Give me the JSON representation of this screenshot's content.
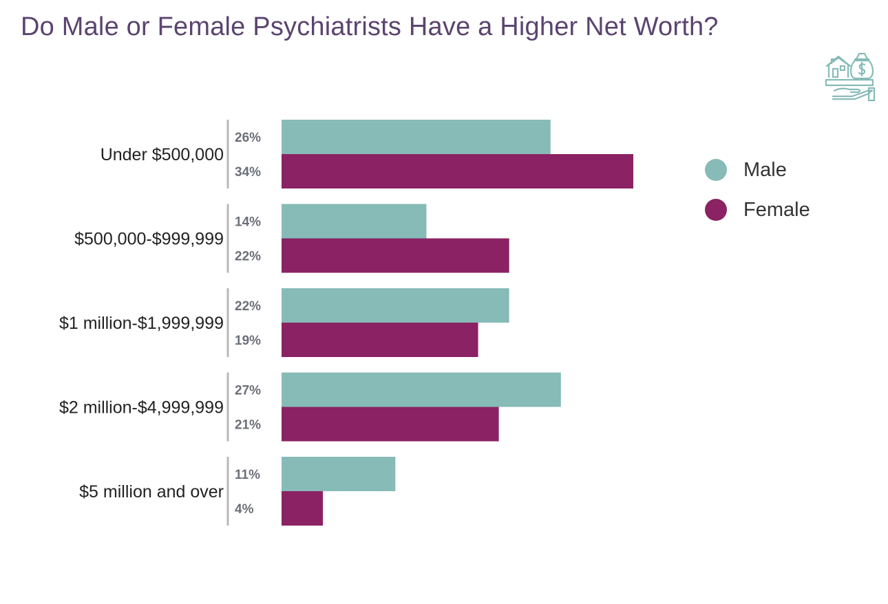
{
  "title": "Do Male or Female Psychiatrists Have a Higher Net Worth?",
  "header_icon": "house-and-money-bag-on-hand-icon",
  "colors": {
    "male": "#86bbb7",
    "female": "#8a2263",
    "title": "#5b4470",
    "value_label": "#6b6f78",
    "category_label": "#222222",
    "bracket": "#b8b8b8"
  },
  "legend": {
    "placement": "right",
    "items": [
      {
        "label": "Male",
        "color": "#86bbb7"
      },
      {
        "label": "Female",
        "color": "#8a2263"
      }
    ]
  },
  "chart_data": {
    "type": "bar",
    "orientation": "horizontal",
    "title": "Do Male or Female Psychiatrists Have a Higher Net Worth?",
    "xlabel": "",
    "ylabel": "",
    "unit": "%",
    "grid": false,
    "legend_placement": "right",
    "xlim": [
      0,
      38
    ],
    "categories": [
      "Under $500,000",
      "$500,000-$999,999",
      "$1 million-$1,999,999",
      "$2 million-$4,999,999",
      "$5 million and over"
    ],
    "series": [
      {
        "name": "Male",
        "color": "#86bbb7",
        "values": [
          26,
          14,
          22,
          27,
          11
        ],
        "labels": [
          "26%",
          "14%",
          "22%",
          "27%",
          "11%"
        ]
      },
      {
        "name": "Female",
        "color": "#8a2263",
        "values": [
          34,
          22,
          19,
          21,
          4
        ],
        "labels": [
          "34%",
          "22%",
          "19%",
          "21%",
          "4%"
        ]
      }
    ]
  }
}
